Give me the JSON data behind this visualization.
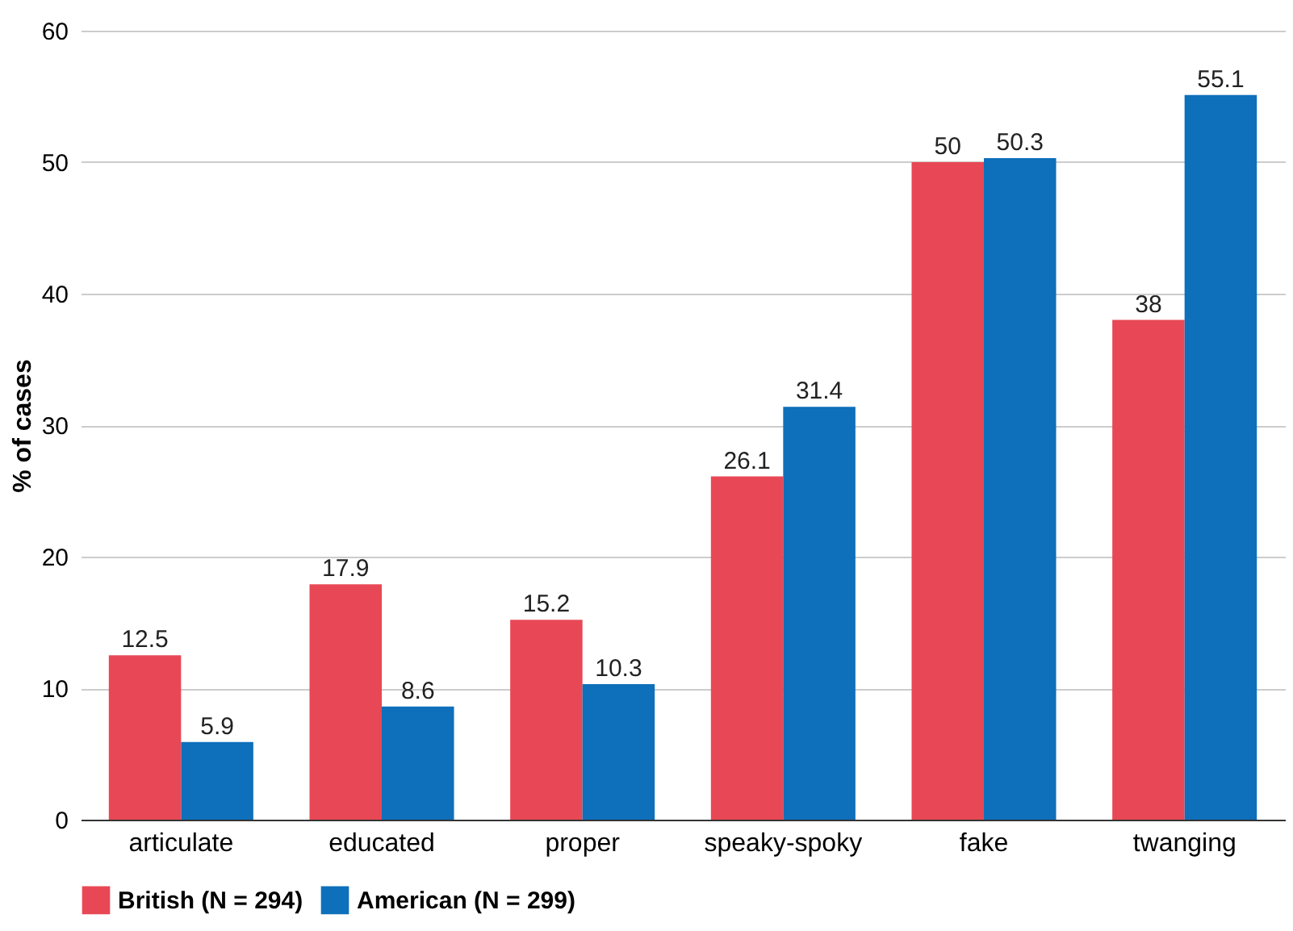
{
  "chart_data": {
    "type": "bar",
    "ylabel": "% of cases",
    "categories": [
      "articulate",
      "educated",
      "proper",
      "speaky-spoky",
      "fake",
      "twanging"
    ],
    "series": [
      {
        "name": "British (N = 294)",
        "color": "#e84855",
        "values": [
          12.5,
          17.9,
          15.2,
          26.1,
          50,
          38
        ]
      },
      {
        "name": "American (N = 299)",
        "color": "#0e6fba",
        "values": [
          5.9,
          8.6,
          10.3,
          31.4,
          50.3,
          55.1
        ]
      }
    ],
    "ylim": [
      0,
      60
    ],
    "yticks": [
      0,
      10,
      20,
      30,
      40,
      50,
      60
    ],
    "grid": "y",
    "legend": "bottom",
    "data_labels": true
  }
}
